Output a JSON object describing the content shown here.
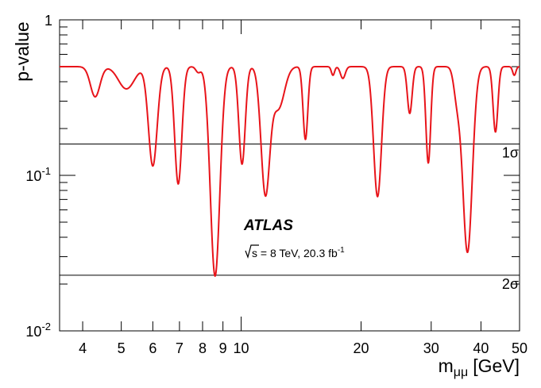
{
  "chart_data": {
    "type": "line",
    "xlabel_main": "m",
    "xlabel_sub": "μμ",
    "xlabel_unit": "[GeV]",
    "ylabel": "p-value",
    "x_scale": "log",
    "y_scale": "log",
    "xlim": [
      3.5,
      50
    ],
    "ylim": [
      0.01,
      1
    ],
    "x_ticks": [
      {
        "value": 4,
        "label": "4"
      },
      {
        "value": 5,
        "label": "5"
      },
      {
        "value": 6,
        "label": "6"
      },
      {
        "value": 7,
        "label": "7"
      },
      {
        "value": 8,
        "label": "8"
      },
      {
        "value": 9,
        "label": "9"
      },
      {
        "value": 10,
        "label": "10"
      },
      {
        "value": 20,
        "label": "20"
      },
      {
        "value": 30,
        "label": "30"
      },
      {
        "value": 40,
        "label": "40"
      },
      {
        "value": 50,
        "label": "50"
      }
    ],
    "y_ticks": [
      {
        "value": 1,
        "base": "1",
        "exp": ""
      },
      {
        "value": 0.1,
        "base": "10",
        "exp": "-1"
      },
      {
        "value": 0.01,
        "base": "10",
        "exp": "-2"
      }
    ],
    "reference_lines": [
      {
        "value": 0.159,
        "label": "1σ"
      },
      {
        "value": 0.0228,
        "label": "2σ"
      }
    ],
    "annotation": {
      "experiment": "ATLAS",
      "sqrt_s": "s",
      "energy_text": " = 8 TeV, 20.3 fb",
      "lumi_exp": "-1"
    },
    "series": [
      {
        "color": "#e8141a",
        "baseline": 0.5,
        "dips": [
          {
            "x": 4.3,
            "min": 0.32,
            "width": 0.012
          },
          {
            "x": 5.15,
            "min": 0.36,
            "width": 0.02
          },
          {
            "x": 6.0,
            "min": 0.115,
            "width": 0.011
          },
          {
            "x": 6.95,
            "min": 0.088,
            "width": 0.009
          },
          {
            "x": 7.8,
            "min": 0.46,
            "width": 0.006
          },
          {
            "x": 8.6,
            "min": 0.0225,
            "width": 0.012
          },
          {
            "x": 10.05,
            "min": 0.118,
            "width": 0.008
          },
          {
            "x": 11.5,
            "min": 0.078,
            "width": 0.011
          },
          {
            "x": 12.4,
            "min": 0.27,
            "width": 0.015
          },
          {
            "x": 14.5,
            "min": 0.17,
            "width": 0.006
          },
          {
            "x": 17.0,
            "min": 0.44,
            "width": 0.004
          },
          {
            "x": 18.0,
            "min": 0.42,
            "width": 0.006
          },
          {
            "x": 22.0,
            "min": 0.073,
            "width": 0.01
          },
          {
            "x": 26.5,
            "min": 0.25,
            "width": 0.006
          },
          {
            "x": 29.5,
            "min": 0.12,
            "width": 0.006
          },
          {
            "x": 34.8,
            "min": 0.33,
            "width": 0.008
          },
          {
            "x": 37.0,
            "min": 0.032,
            "width": 0.012
          },
          {
            "x": 43.5,
            "min": 0.19,
            "width": 0.006
          },
          {
            "x": 48.5,
            "min": 0.44,
            "width": 0.004
          }
        ]
      }
    ]
  }
}
